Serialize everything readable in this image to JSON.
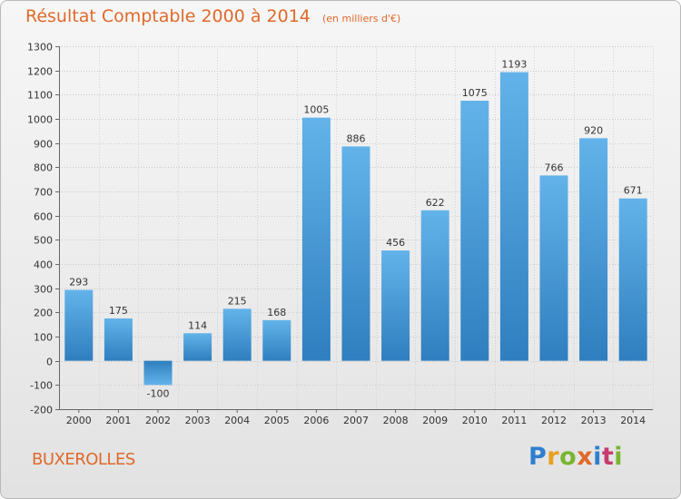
{
  "header": {
    "title": "Résultat Comptable 2000 à 2014",
    "unit": "(en milliers d'€)"
  },
  "footer": {
    "commune": "BUXEROLLES",
    "brand": "Proxiti"
  },
  "colors": {
    "bar_light": "#63b3ea",
    "bar_dark": "#2f7ebf",
    "title": "#e0692a",
    "axis": "#555555"
  },
  "chart_data": {
    "type": "bar",
    "title": "Résultat Comptable 2000 à 2014",
    "ylabel": "",
    "xlabel": "",
    "categories": [
      "2000",
      "2001",
      "2002",
      "2003",
      "2004",
      "2005",
      "2006",
      "2007",
      "2008",
      "2009",
      "2010",
      "2011",
      "2012",
      "2013",
      "2014"
    ],
    "values": [
      293,
      175,
      -100,
      114,
      215,
      168,
      1005,
      886,
      456,
      622,
      1075,
      1193,
      766,
      920,
      671
    ],
    "ylim": [
      -200,
      1300
    ],
    "yticks": [
      -200,
      -100,
      0,
      100,
      200,
      300,
      400,
      500,
      600,
      700,
      800,
      900,
      1000,
      1100,
      1200,
      1300
    ],
    "grid": true
  }
}
